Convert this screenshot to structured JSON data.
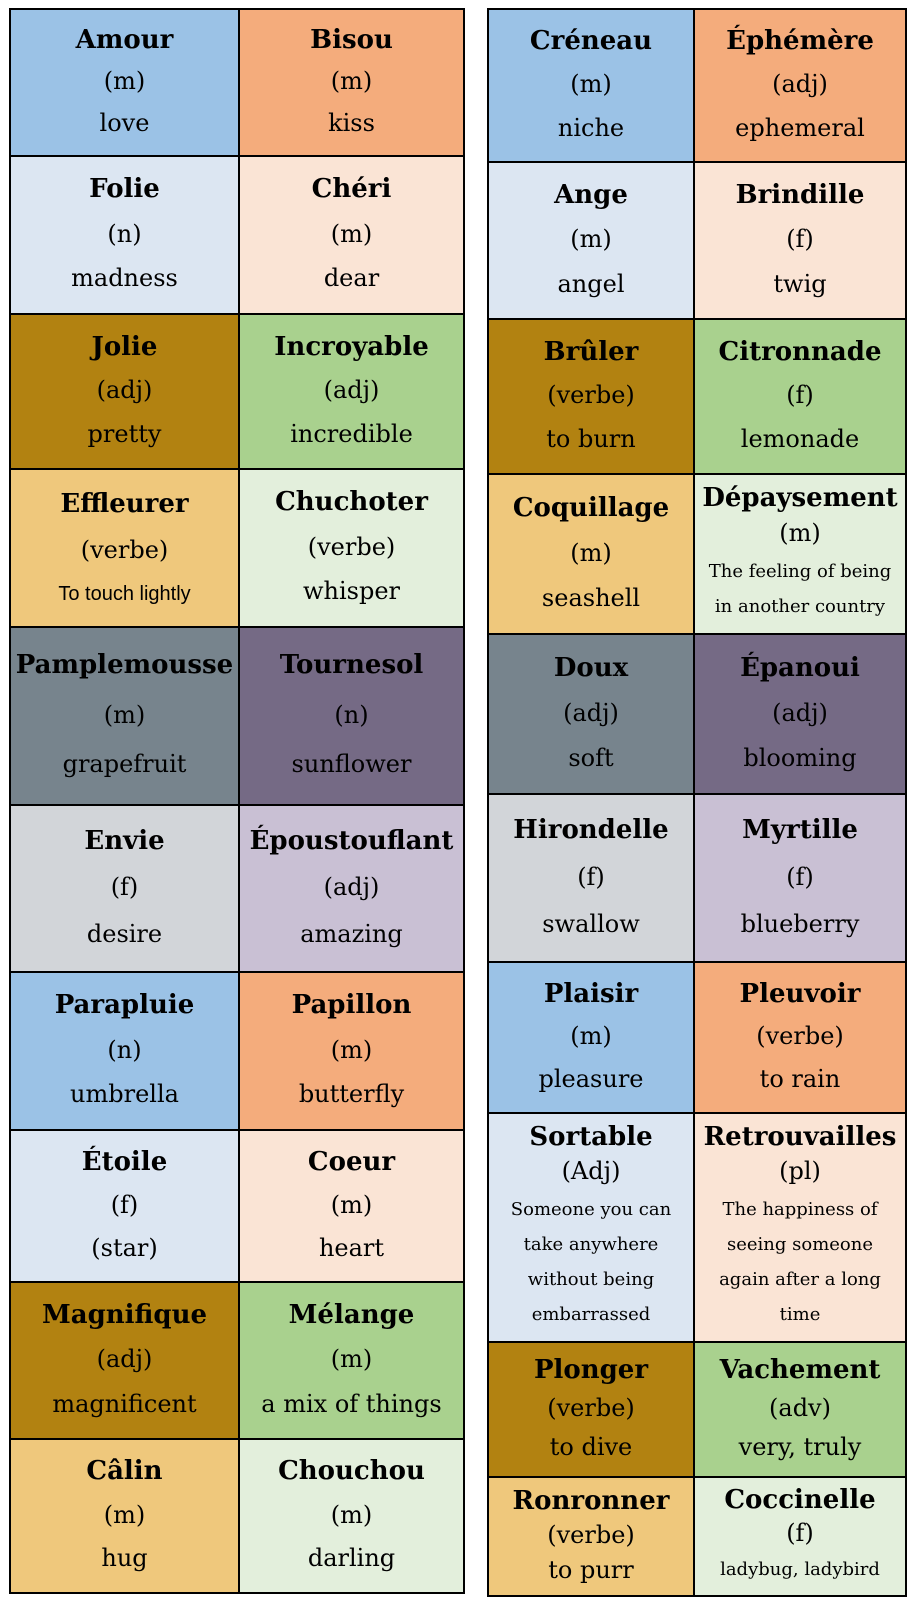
{
  "palette": {
    "blue": "#9BC2E6",
    "orange": "#F4AC7C",
    "lightblue": "#DCE6F2",
    "lightpeach": "#FAE4D5",
    "brown": "#B28211",
    "green": "#A9D18E",
    "tan": "#EFC87C",
    "palegreen": "#E3EFDC",
    "gray": "#77848D",
    "purple": "#756A85",
    "lightgray": "#D2D5D9",
    "lavender": "#C9C0D4"
  },
  "tables": [
    {
      "id": "left",
      "rows": [
        {
          "cells": [
            {
              "word": "Amour",
              "pos": "(m)",
              "translation": "love",
              "color": "blue"
            },
            {
              "word": "Bisou",
              "pos": "(m)",
              "translation": "kiss",
              "color": "orange"
            }
          ]
        },
        {
          "cells": [
            {
              "word": "Folie",
              "pos": "(n)",
              "translation": "madness",
              "color": "lightblue"
            },
            {
              "word": "Chéri",
              "pos": "(m)",
              "translation": "dear",
              "color": "lightpeach"
            }
          ]
        },
        {
          "cells": [
            {
              "word": "Jolie",
              "pos": "(adj)",
              "translation": "pretty",
              "color": "brown"
            },
            {
              "word": "Incroyable",
              "pos": "(adj)",
              "translation": "incredible",
              "color": "green"
            }
          ]
        },
        {
          "cells": [
            {
              "word": "Effleurer",
              "pos": "(verbe)",
              "translation": "To touch lightly",
              "color": "tan",
              "style": "sans"
            },
            {
              "word": "Chuchoter",
              "pos": "(verbe)",
              "translation": "whisper",
              "color": "palegreen"
            }
          ]
        },
        {
          "cells": [
            {
              "word": "Pamplemousse",
              "pos": "(m)",
              "translation": "grapefruit",
              "color": "gray"
            },
            {
              "word": "Tournesol",
              "pos": "(n)",
              "translation": "sunflower",
              "color": "purple"
            }
          ]
        },
        {
          "cells": [
            {
              "word": "Envie",
              "pos": "(f)",
              "translation": "desire",
              "color": "lightgray"
            },
            {
              "word": "Époustouflant",
              "pos": "(adj)",
              "translation": "amazing",
              "color": "lavender"
            }
          ]
        },
        {
          "cells": [
            {
              "word": "Parapluie",
              "pos": "(n)",
              "translation": "umbrella",
              "color": "blue"
            },
            {
              "word": "Papillon",
              "pos": "(m)",
              "translation": "butterfly",
              "color": "orange"
            }
          ]
        },
        {
          "cells": [
            {
              "word": "Étoile",
              "pos": "(f)",
              "translation": "(star)",
              "color": "lightblue"
            },
            {
              "word": "Coeur",
              "pos": "(m)",
              "translation": "heart",
              "color": "lightpeach"
            }
          ]
        },
        {
          "cells": [
            {
              "word": "Magnifique",
              "pos": "(adj)",
              "translation": "magnificent",
              "color": "brown"
            },
            {
              "word": "Mélange",
              "pos": "(m)",
              "translation": "a mix of things",
              "color": "green"
            }
          ]
        },
        {
          "cells": [
            {
              "word": "Câlin",
              "pos": "(m)",
              "translation": "hug",
              "color": "tan"
            },
            {
              "word": "Chouchou",
              "pos": "(m)",
              "translation": "darling",
              "color": "palegreen"
            }
          ]
        }
      ]
    },
    {
      "id": "right",
      "rows": [
        {
          "cells": [
            {
              "word": "Créneau",
              "pos": "(m)",
              "translation": "niche",
              "color": "blue"
            },
            {
              "word": "Éphémère",
              "pos": "(adj)",
              "translation": "ephemeral",
              "color": "orange"
            }
          ]
        },
        {
          "cells": [
            {
              "word": "Ange",
              "pos": "(m)",
              "translation": "angel",
              "color": "lightblue"
            },
            {
              "word": "Brindille",
              "pos": "(f)",
              "translation": "twig",
              "color": "lightpeach"
            }
          ]
        },
        {
          "cells": [
            {
              "word": "Brûler",
              "pos": "(verbe)",
              "translation": "to burn",
              "color": "brown"
            },
            {
              "word": "Citronnade",
              "pos": "(f)",
              "translation": "lemonade",
              "color": "green"
            }
          ]
        },
        {
          "cells": [
            {
              "word": "Coquillage",
              "pos": "(m)",
              "translation": "seashell",
              "color": "tan"
            },
            {
              "word": "Dépaysement",
              "pos": "(m)",
              "translation": "The feeling of being in another country",
              "color": "palegreen",
              "style": "small"
            }
          ]
        },
        {
          "cells": [
            {
              "word": "Doux",
              "pos": "(adj)",
              "translation": "soft",
              "color": "gray"
            },
            {
              "word": "Épanoui",
              "pos": "(adj)",
              "translation": "blooming",
              "color": "purple"
            }
          ]
        },
        {
          "cells": [
            {
              "word": "Hirondelle",
              "pos": "(f)",
              "translation": "swallow",
              "color": "lightgray"
            },
            {
              "word": "Myrtille",
              "pos": "(f)",
              "translation": "blueberry",
              "color": "lavender"
            }
          ]
        },
        {
          "cells": [
            {
              "word": "Plaisir",
              "pos": "(m)",
              "translation": "pleasure",
              "color": "blue"
            },
            {
              "word": "Pleuvoir",
              "pos": "(verbe)",
              "translation": "to rain",
              "color": "orange"
            }
          ]
        },
        {
          "cells": [
            {
              "word": "Sortable",
              "pos": "(Adj)",
              "translation": "Someone you can take anywhere without being embarrassed",
              "color": "lightblue",
              "style": "small"
            },
            {
              "word": "Retrouvailles",
              "pos": "(pl)",
              "translation": "The happiness of seeing someone again after a long time",
              "color": "lightpeach",
              "style": "small"
            }
          ]
        },
        {
          "cells": [
            {
              "word": "Plonger",
              "pos": "(verbe)",
              "translation": "to dive",
              "color": "brown"
            },
            {
              "word": "Vachement",
              "pos": "(adv)",
              "translation": "very, truly",
              "color": "green"
            }
          ]
        },
        {
          "cells": [
            {
              "word": "Ronronner",
              "pos": "(verbe)",
              "translation": "to purr",
              "color": "tan"
            },
            {
              "word": "Coccinelle",
              "pos": "(f)",
              "translation": "ladybug, ladybird",
              "color": "palegreen",
              "style": "small"
            }
          ]
        }
      ]
    }
  ]
}
